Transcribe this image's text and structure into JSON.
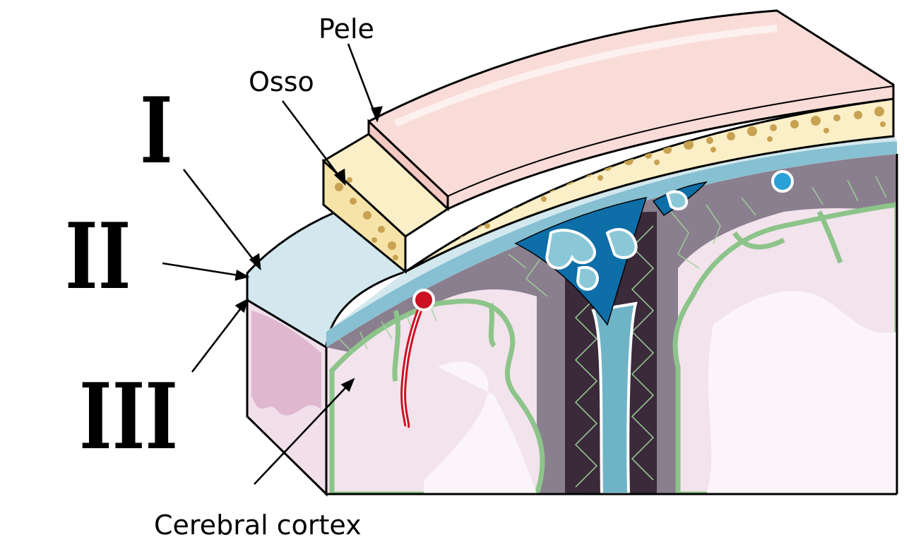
{
  "labels": {
    "skin": "Pele",
    "bone": "Osso",
    "layer_1": "I",
    "layer_2": "II",
    "layer_3": "III",
    "cortex": "Cerebral cortex"
  },
  "colors": {
    "skin": "#f9dcd8",
    "skin_edge": "#f3c8c2",
    "bone": "#fbefc8",
    "bone_pore": "#c8a252",
    "dura": "#d2e8ee",
    "dura_dark": "#86c0d2",
    "sinus": "#0d6ea8",
    "arachnoid_space": "#3a2a3a",
    "trabeculae": "#8cc48a",
    "cortex": "#f2e3ec",
    "cortex_dark": "#dfb8d0",
    "artery": "#cc1122",
    "vein": "#2aa0d6",
    "outline": "#000000"
  }
}
